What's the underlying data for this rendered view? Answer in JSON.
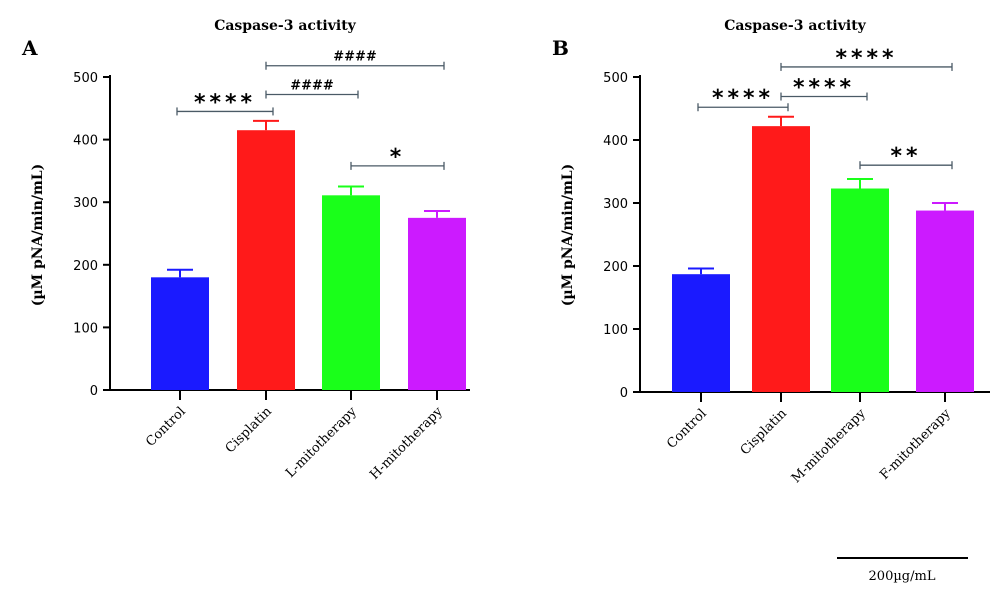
{
  "chart_data": [
    {
      "type": "bar",
      "panel": "A",
      "title": "Caspase-3 activity",
      "ylabel": "(µM pNA/min/mL)",
      "ylim": [
        0,
        500
      ],
      "yticks": [
        0,
        100,
        200,
        300,
        400,
        500
      ],
      "categories": [
        "Control",
        "Cisplatin",
        "L-mitotherapy",
        "H-mitotherapy"
      ],
      "values": [
        180,
        415,
        311,
        275
      ],
      "errors": [
        12,
        15,
        14,
        11
      ],
      "colors": [
        "#1a1aff",
        "#ff1a1a",
        "#1aff1a",
        "#cc1aff"
      ],
      "annotations": [
        {
          "from": 0,
          "to": 1,
          "label": "****",
          "kind": "stars",
          "level": 445
        },
        {
          "from": 1,
          "to": 2,
          "label": "####",
          "kind": "hash",
          "level": 472
        },
        {
          "from": 1,
          "to": 3,
          "label": "####",
          "kind": "hash",
          "level": 518
        },
        {
          "from": 2,
          "to": 3,
          "label": "*",
          "kind": "stars",
          "level": 358
        }
      ]
    },
    {
      "type": "bar",
      "panel": "B",
      "title": "Caspase-3 activity",
      "ylabel": "(µM pNA/min/mL)",
      "ylim": [
        0,
        500
      ],
      "yticks": [
        0,
        100,
        200,
        300,
        400,
        500
      ],
      "categories": [
        "Control",
        "Cisplatin",
        "M-mitotherapy",
        "F-mitotherapy"
      ],
      "values": [
        187,
        422,
        323,
        288
      ],
      "errors": [
        9,
        15,
        15,
        12
      ],
      "colors": [
        "#1a1aff",
        "#ff1a1a",
        "#1aff1a",
        "#cc1aff"
      ],
      "annotations": [
        {
          "from": 0,
          "to": 1,
          "label": "****",
          "kind": "stars",
          "level": 452
        },
        {
          "from": 1,
          "to": 2,
          "label": "****",
          "kind": "stars",
          "level": 469
        },
        {
          "from": 1,
          "to": 3,
          "label": "****",
          "kind": "stars",
          "level": 516
        },
        {
          "from": 2,
          "to": 3,
          "label": "**",
          "kind": "stars",
          "level": 360
        }
      ]
    }
  ],
  "scale_bar": {
    "label": "200µg/mL"
  }
}
